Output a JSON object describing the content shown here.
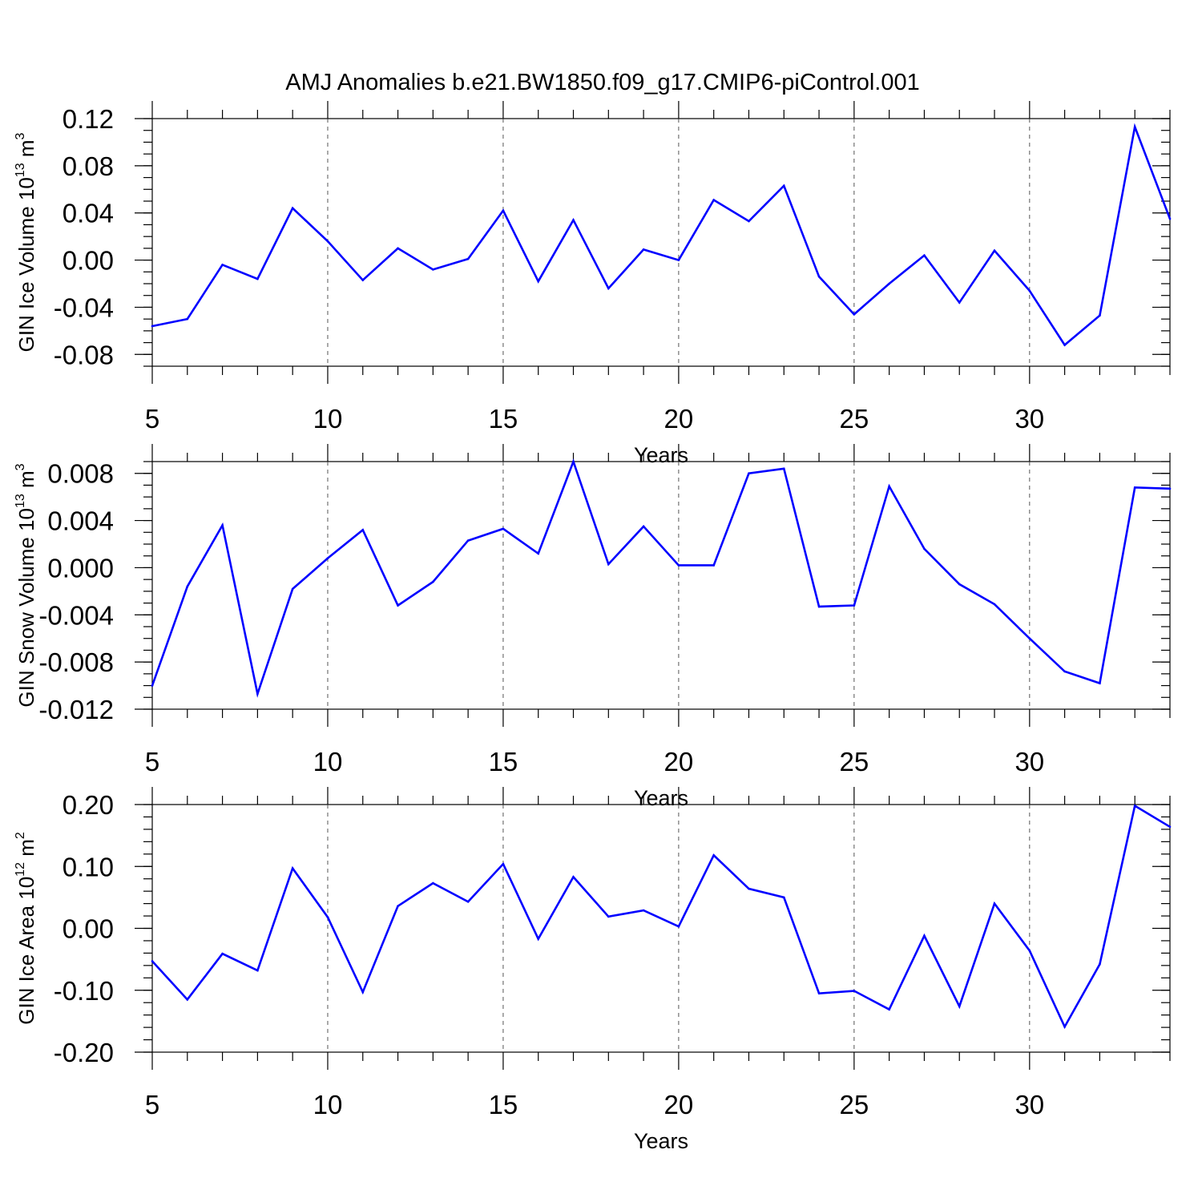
{
  "title": "AMJ Anomalies b.e21.BW1850.f09_g17.CMIP6-piControl.001",
  "chart_data": [
    {
      "type": "line",
      "ylabel_main": "GIN Ice Volume 10",
      "ylabel_exp": "13",
      "ylabel_unit": " m",
      "ylabel_unit_exp": "3",
      "xlabel": "Years",
      "xlim": [
        5,
        34
      ],
      "ylim": [
        -0.09,
        0.12
      ],
      "yticks": [
        -0.08,
        -0.04,
        0.0,
        0.04,
        0.08,
        0.12
      ],
      "ytick_labels": [
        "-0.08",
        "-0.04",
        "0.00",
        "0.04",
        "0.08",
        "0.12"
      ],
      "yminor_step": 0.01,
      "xticks": [
        5,
        10,
        15,
        20,
        25,
        30
      ],
      "xtick_labels": [
        "5",
        "10",
        "15",
        "20",
        "25",
        "30"
      ],
      "line_color": "#0000ff",
      "series": [
        {
          "x": [
            5,
            6,
            7,
            8,
            9,
            10,
            11,
            12,
            13,
            14,
            15,
            16,
            17,
            18,
            19,
            20,
            21,
            22,
            23,
            24,
            25,
            26,
            27,
            28,
            29,
            30,
            31,
            32,
            33,
            34
          ],
          "values": [
            -0.056,
            -0.05,
            -0.004,
            -0.016,
            0.044,
            0.016,
            -0.017,
            0.01,
            -0.008,
            0.001,
            0.042,
            -0.018,
            0.034,
            -0.024,
            0.009,
            0.0,
            0.051,
            0.033,
            0.063,
            -0.014,
            -0.046,
            -0.02,
            0.004,
            -0.036,
            0.008,
            -0.026,
            -0.072,
            -0.047,
            0.113,
            0.035
          ]
        }
      ]
    },
    {
      "type": "line",
      "ylabel_main": "GIN Snow Volume 10",
      "ylabel_exp": "13",
      "ylabel_unit": " m",
      "ylabel_unit_exp": "3",
      "xlabel": "Years",
      "xlim": [
        5,
        34
      ],
      "ylim": [
        -0.012,
        0.009
      ],
      "yticks": [
        -0.012,
        -0.008,
        -0.004,
        0.0,
        0.004,
        0.008
      ],
      "ytick_labels": [
        "-0.012",
        "-0.008",
        "-0.004",
        "0.000",
        "0.004",
        "0.008"
      ],
      "yminor_step": 0.001,
      "xticks": [
        5,
        10,
        15,
        20,
        25,
        30
      ],
      "xtick_labels": [
        "5",
        "10",
        "15",
        "20",
        "25",
        "30"
      ],
      "line_color": "#0000ff",
      "series": [
        {
          "x": [
            5,
            6,
            7,
            8,
            9,
            10,
            11,
            12,
            13,
            14,
            15,
            16,
            17,
            18,
            19,
            20,
            21,
            22,
            23,
            24,
            25,
            26,
            27,
            28,
            29,
            30,
            31,
            32,
            33,
            34
          ],
          "values": [
            -0.01,
            -0.0016,
            0.0036,
            -0.0107,
            -0.0018,
            0.0008,
            0.0032,
            -0.0032,
            -0.0012,
            0.0023,
            0.0033,
            0.0012,
            0.009,
            0.0003,
            0.0035,
            0.0002,
            0.0002,
            0.008,
            0.0084,
            -0.0033,
            -0.0032,
            0.0069,
            0.0016,
            -0.0014,
            -0.0031,
            -0.006,
            -0.0088,
            -0.0098,
            0.0068,
            0.0067
          ]
        }
      ]
    },
    {
      "type": "line",
      "ylabel_main": "GIN Ice Area 10",
      "ylabel_exp": "12",
      "ylabel_unit": " m",
      "ylabel_unit_exp": "2",
      "xlabel": "Years",
      "xlim": [
        5,
        34
      ],
      "ylim": [
        -0.2,
        0.2
      ],
      "yticks": [
        -0.2,
        -0.1,
        0.0,
        0.1,
        0.2
      ],
      "ytick_labels": [
        "-0.20",
        "-0.10",
        "0.00",
        "0.10",
        "0.20"
      ],
      "yminor_step": 0.02,
      "xticks": [
        5,
        10,
        15,
        20,
        25,
        30
      ],
      "xtick_labels": [
        "5",
        "10",
        "15",
        "20",
        "25",
        "30"
      ],
      "line_color": "#0000ff",
      "series": [
        {
          "x": [
            5,
            6,
            7,
            8,
            9,
            10,
            11,
            12,
            13,
            14,
            15,
            16,
            17,
            18,
            19,
            20,
            21,
            22,
            23,
            24,
            25,
            26,
            27,
            28,
            29,
            30,
            31,
            32,
            33,
            34
          ],
          "values": [
            -0.053,
            -0.115,
            -0.041,
            -0.068,
            0.097,
            0.018,
            -0.103,
            0.036,
            0.073,
            0.043,
            0.104,
            -0.017,
            0.083,
            0.019,
            0.029,
            0.003,
            0.118,
            0.064,
            0.05,
            -0.105,
            -0.101,
            -0.131,
            -0.012,
            -0.126,
            0.04,
            -0.036,
            -0.159,
            -0.058,
            0.198,
            0.164
          ]
        }
      ]
    }
  ]
}
